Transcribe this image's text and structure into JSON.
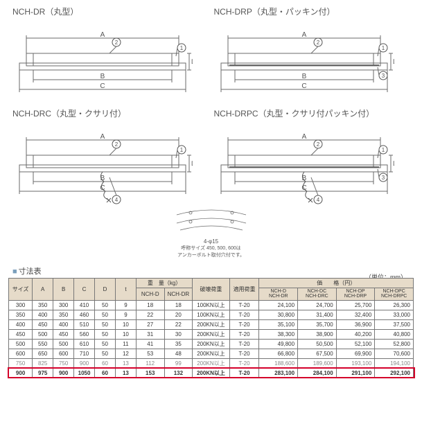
{
  "diagrams": [
    {
      "title": "NCH-DR（丸型）",
      "callouts": [
        "1",
        "2"
      ],
      "chain": false,
      "packing": false
    },
    {
      "title": "NCH-DRP（丸型・パッキン付）",
      "callouts": [
        "1",
        "2",
        "3"
      ],
      "chain": false,
      "packing": true
    },
    {
      "title": "NCH-DRC（丸型・クサリ付）",
      "callouts": [
        "1",
        "2",
        "4"
      ],
      "chain": true,
      "packing": false
    },
    {
      "title": "NCH-DRPC（丸型・クサリ付パッキン付）",
      "callouts": [
        "1",
        "2",
        "3",
        "4"
      ],
      "chain": true,
      "packing": true
    }
  ],
  "arc_note_lines": [
    "4-φ15",
    "呼称サイズ 450, 500, 600は",
    "アンカーボルト取付穴付です。"
  ],
  "dim_labels": [
    "A",
    "B",
    "C",
    "D"
  ],
  "section_title": "寸法表",
  "unit_label": "（単位：mm）",
  "table": {
    "header_top": {
      "size": "サイズ",
      "dims": [
        "A",
        "B",
        "C",
        "D",
        "t"
      ],
      "weight": "重　量（kg）",
      "break": "破壊荷重",
      "load": "適用荷重",
      "price": "価　　格（円）"
    },
    "header_sub": {
      "weight_cols": [
        "NCH-D",
        "NCH-DR"
      ],
      "price_cols": [
        "NCH-D\nNCH-DR",
        "NCH-DC\nNCH-DRC",
        "NCH-DP\nNCH-DRP",
        "NCH-DPC\nNCH-DRPC"
      ]
    },
    "rows": [
      {
        "size": "300",
        "A": "350",
        "B": "300",
        "C": "410",
        "D": "50",
        "t": "9",
        "w1": "18",
        "w2": "18",
        "break": "100KN以上",
        "load": "T-20",
        "p": [
          "24,100",
          "24,700",
          "25,700",
          "26,300"
        ]
      },
      {
        "size": "350",
        "A": "400",
        "B": "350",
        "C": "460",
        "D": "50",
        "t": "9",
        "w1": "22",
        "w2": "20",
        "break": "100KN以上",
        "load": "T-20",
        "p": [
          "30,800",
          "31,400",
          "32,400",
          "33,000"
        ]
      },
      {
        "size": "400",
        "A": "450",
        "B": "400",
        "C": "510",
        "D": "50",
        "t": "10",
        "w1": "27",
        "w2": "22",
        "break": "200KN以上",
        "load": "T-20",
        "p": [
          "35,100",
          "35,700",
          "36,900",
          "37,500"
        ]
      },
      {
        "size": "450",
        "A": "500",
        "B": "450",
        "C": "560",
        "D": "50",
        "t": "10",
        "w1": "31",
        "w2": "30",
        "break": "200KN以上",
        "load": "T-20",
        "p": [
          "38,300",
          "38,900",
          "40,200",
          "40,800"
        ]
      },
      {
        "size": "500",
        "A": "550",
        "B": "500",
        "C": "610",
        "D": "50",
        "t": "11",
        "w1": "41",
        "w2": "35",
        "break": "200KN以上",
        "load": "T-20",
        "p": [
          "49,800",
          "50,500",
          "52,100",
          "52,800"
        ]
      },
      {
        "size": "600",
        "A": "650",
        "B": "600",
        "C": "710",
        "D": "50",
        "t": "12",
        "w1": "53",
        "w2": "48",
        "break": "200KN以上",
        "load": "T-20",
        "p": [
          "66,800",
          "67,500",
          "69,900",
          "70,600"
        ]
      },
      {
        "size": "750",
        "A": "825",
        "B": "750",
        "C": "900",
        "D": "60",
        "t": "13",
        "w1": "112",
        "w2": "99",
        "break": "200KN以上",
        "load": "T-20",
        "p": [
          "188,600",
          "189,600",
          "193,100",
          "194,100"
        ],
        "strike": true
      },
      {
        "size": "900",
        "A": "975",
        "B": "900",
        "C": "1050",
        "D": "60",
        "t": "13",
        "w1": "153",
        "w2": "132",
        "break": "200KN以上",
        "load": "T-20",
        "p": [
          "283,100",
          "284,100",
          "291,100",
          "292,100"
        ],
        "highlight": true
      }
    ]
  },
  "colors": {
    "line": "#6a6a6a",
    "callout": "#555555",
    "header_bg": "#e6dbc9",
    "highlight": "#d4002a",
    "title_marker": "#7b9fbc"
  }
}
